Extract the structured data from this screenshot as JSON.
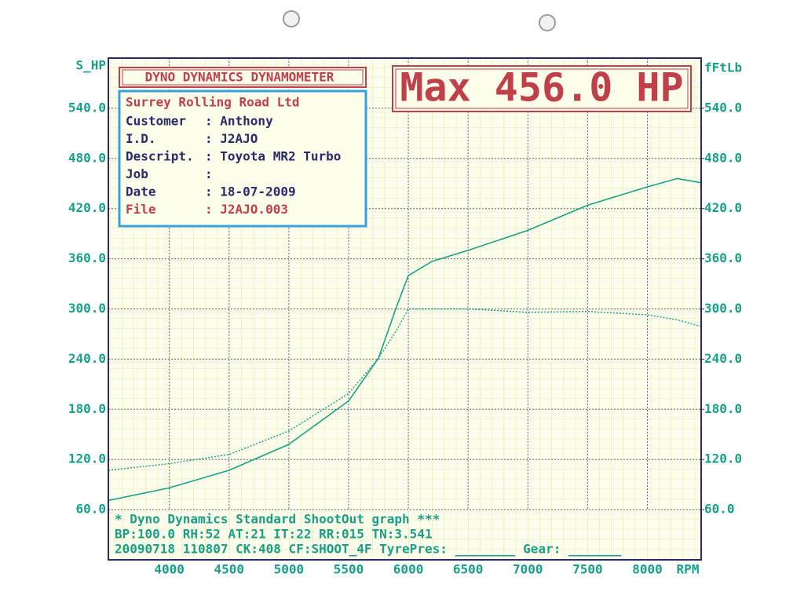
{
  "chart_data": {
    "type": "line",
    "header": "DYNO DYNAMICS DYNAMOMETER",
    "headline": "Max 456.0 HP",
    "ylabel": "S_HP",
    "y2label": "fFtLb",
    "xlabel": "RPM",
    "info": {
      "title": "Surrey Rolling Road Ltd",
      "rows": [
        [
          "Customer",
          ": Anthony"
        ],
        [
          "I.D.",
          ": J2AJO"
        ],
        [
          "Descript.",
          ": Toyota MR2 Turbo"
        ],
        [
          "Job",
          ":"
        ],
        [
          "Date",
          ": 18-07-2009"
        ],
        [
          "File",
          ": J2AJO.003"
        ]
      ]
    },
    "footer": [
      "* Dyno Dynamics Standard ShootOut graph ***",
      "BP:100.0 RH:52 AT:21 IT:22  RR:015 TN:3.541",
      "20090718 110807 CK:408 CF:SHOOT_4F TyrePres: ________ Gear: _______"
    ],
    "x": [
      3490,
      4000,
      4500,
      5000,
      5500,
      5750,
      5900,
      6000,
      6200,
      6500,
      7000,
      7500,
      8000,
      8250,
      8450
    ],
    "series": [
      {
        "color": "#1a9f86",
        "style": "solid",
        "values": [
          71,
          86,
          107,
          138,
          190,
          241,
          302,
          340,
          357,
          370,
          394,
          424,
          446,
          456,
          451
        ]
      },
      {
        "color": "#1a9f86",
        "style": "dotted",
        "axis": "y2",
        "values": [
          107,
          115,
          126,
          154,
          199,
          241,
          274,
          300,
          300,
          300,
          296,
          297,
          293,
          287,
          279
        ]
      }
    ],
    "xlim": [
      3490,
      8450
    ],
    "xticks": [
      4000,
      4500,
      5000,
      5500,
      6000,
      6500,
      7000,
      7500,
      8000
    ],
    "ylim": [
      0,
      600
    ],
    "yticks": [
      {
        "value": 60,
        "label": "60.0"
      },
      {
        "value": 120,
        "label": "120.0"
      },
      {
        "value": 180,
        "label": "180.0"
      },
      {
        "value": 240,
        "label": "240.0"
      },
      {
        "value": 300,
        "label": "300.0"
      },
      {
        "value": 360,
        "label": "360.0"
      },
      {
        "value": 420,
        "label": "420.0"
      },
      {
        "value": 480,
        "label": "480.0"
      },
      {
        "value": 540,
        "label": "540.0"
      }
    ],
    "y2lim": [
      0,
      600
    ],
    "y2ticks": [
      {
        "value": 60,
        "label": "60.0"
      },
      {
        "value": 120,
        "label": "120.0"
      },
      {
        "value": 180,
        "label": "180.0"
      },
      {
        "value": 240,
        "label": "240.0"
      },
      {
        "value": 300,
        "label": "300.0"
      },
      {
        "value": 360,
        "label": "360.0"
      },
      {
        "value": 420,
        "label": "420.0"
      },
      {
        "value": 480,
        "label": "480.0"
      },
      {
        "value": 540,
        "label": "540.0"
      }
    ],
    "grid": true
  }
}
